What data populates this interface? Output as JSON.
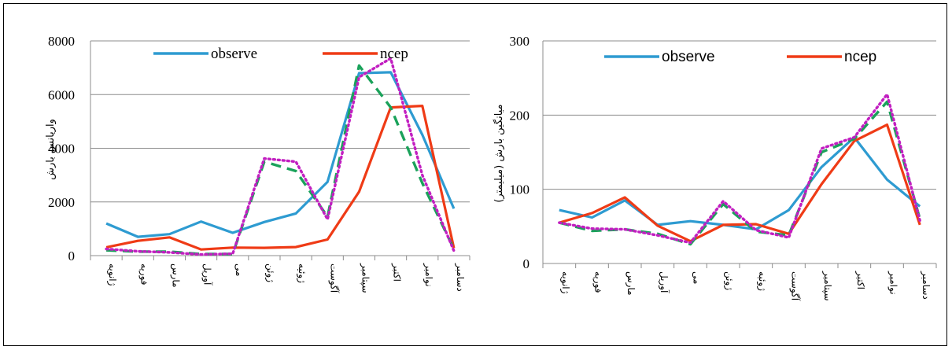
{
  "chart_data": [
    {
      "type": "line",
      "title": "",
      "xlabel": "",
      "ylabel": "واریانس بارش",
      "ylim": [
        0,
        8000
      ],
      "yticks": [
        "0",
        "2000",
        "4000",
        "6000",
        "8000"
      ],
      "grid": true,
      "legend_position": "top",
      "categories": [
        "ژانویه",
        "فوریه",
        "مارس",
        "آوریل",
        "می",
        "ژوئن",
        "ژوئیه",
        "آگوست",
        "سپتامبر",
        "اکتبر",
        "نوامبر",
        "دسامبر"
      ],
      "series": [
        {
          "name": "observe",
          "color": "#2e9bd1",
          "dash": "solid",
          "values": [
            1200,
            700,
            800,
            1270,
            850,
            1250,
            1570,
            2750,
            6800,
            6830,
            4500,
            1750
          ]
        },
        {
          "name": "ncep",
          "color": "#ef3b16",
          "dash": "solid",
          "values": [
            310,
            550,
            680,
            230,
            300,
            290,
            320,
            600,
            2380,
            5520,
            5580,
            280
          ]
        },
        {
          "name": "",
          "color": "#1aa25a",
          "dash": "dashed",
          "values": [
            200,
            150,
            150,
            60,
            60,
            3500,
            3150,
            1450,
            7080,
            5520,
            2700,
            250
          ]
        },
        {
          "name": "",
          "color": "#c21fc1",
          "dash": "dotted",
          "values": [
            250,
            160,
            120,
            40,
            70,
            3620,
            3500,
            1350,
            6650,
            7350,
            3000,
            180
          ]
        }
      ]
    },
    {
      "type": "line",
      "title": "",
      "xlabel": "",
      "ylabel": "میانگین بارش (میلیمتر)",
      "ylim": [
        0,
        300
      ],
      "yticks": [
        "0",
        "100",
        "200",
        "300"
      ],
      "grid": true,
      "legend_position": "top",
      "categories": [
        "ژانویه",
        "فوریه",
        "مارس",
        "آوریل",
        "می",
        "ژوئن",
        "ژوئیه",
        "آگوست",
        "سپتامبر",
        "اکتبر",
        "نوامبر",
        "دسامبر"
      ],
      "series": [
        {
          "name": "observe",
          "color": "#2e9bd1",
          "dash": "solid",
          "values": [
            72,
            62,
            85,
            52,
            57,
            52,
            46,
            72,
            130,
            170,
            113,
            77
          ]
        },
        {
          "name": "ncep",
          "color": "#ef3b16",
          "dash": "solid",
          "values": [
            55,
            68,
            89,
            51,
            30,
            52,
            53,
            40,
            107,
            165,
            187,
            52
          ]
        },
        {
          "name": "",
          "color": "#1aa25a",
          "dash": "dashed",
          "values": [
            55,
            44,
            46,
            40,
            26,
            80,
            43,
            38,
            150,
            168,
            218,
            60
          ]
        },
        {
          "name": "",
          "color": "#c21fc1",
          "dash": "dotted",
          "values": [
            55,
            47,
            46,
            38,
            28,
            84,
            45,
            35,
            155,
            170,
            228,
            58
          ]
        }
      ]
    }
  ]
}
